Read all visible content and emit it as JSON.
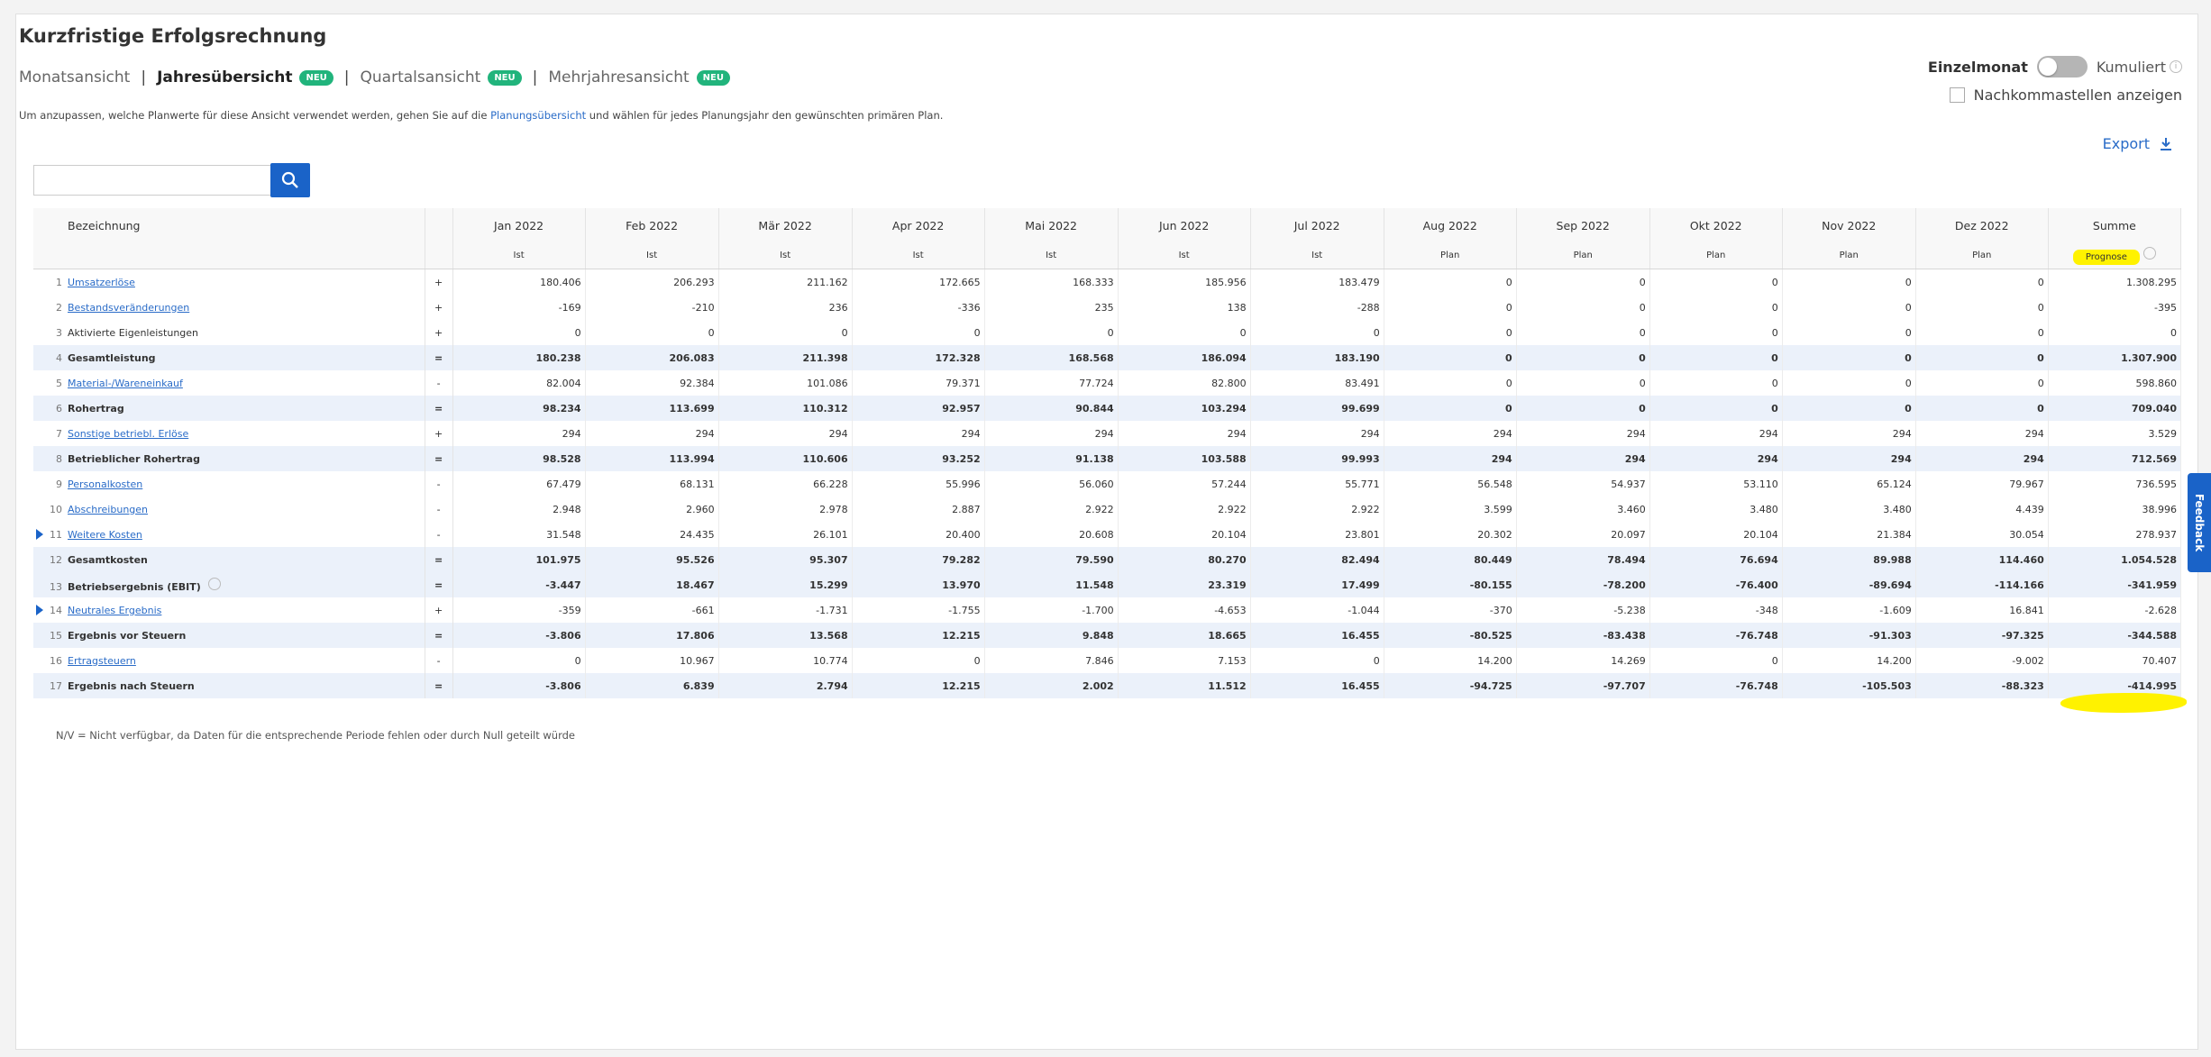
{
  "page": {
    "title": "Kurzfristige Erfolgsrechnung",
    "tabs": [
      {
        "label": "Monatsansicht",
        "badge": ""
      },
      {
        "label": "Jahresübersicht",
        "badge": "NEU"
      },
      {
        "label": "Quartalsansicht",
        "badge": "NEU"
      },
      {
        "label": "Mehrjahresansicht",
        "badge": "NEU"
      }
    ],
    "tab_separator": "|",
    "hint_before": "Um anzupassen, welche Planwerte für diese Ansicht verwendet werden, gehen Sie auf die ",
    "hint_link": "Planungsübersicht",
    "hint_after": " und wählen für jedes Planungsjahr den gewünschten primären Plan.",
    "toggle_left": "Einzelmonat",
    "toggle_right": "Kumuliert",
    "toggle_info": "i",
    "decimals_label": "Nachkommastellen anzeigen",
    "export_label": "Export",
    "search_value": "",
    "footnote": "N/V = Nicht verfügbar, da Daten für die entsprechende Periode fehlen oder durch Null geteilt würde",
    "feedback_label": "Feedback"
  },
  "table": {
    "name_header": "Bezeichnung",
    "columns": [
      "Jan 2022",
      "Feb 2022",
      "Mär 2022",
      "Apr 2022",
      "Mai 2022",
      "Jun 2022",
      "Jul 2022",
      "Aug 2022",
      "Sep 2022",
      "Okt 2022",
      "Nov 2022",
      "Dez 2022",
      "Summe"
    ],
    "subheaders": [
      "Ist",
      "Ist",
      "Ist",
      "Ist",
      "Ist",
      "Ist",
      "Ist",
      "Plan",
      "Plan",
      "Plan",
      "Plan",
      "Plan",
      "Prognose"
    ],
    "rows": [
      {
        "num": "1",
        "name": "Umsatzerlöse",
        "link": true,
        "total": false,
        "expand": false,
        "op": "+",
        "values": [
          "180.406",
          "206.293",
          "211.162",
          "172.665",
          "168.333",
          "185.956",
          "183.479",
          "0",
          "0",
          "0",
          "0",
          "0",
          "1.308.295"
        ]
      },
      {
        "num": "2",
        "name": "Bestandsveränderungen",
        "link": true,
        "total": false,
        "expand": false,
        "op": "+",
        "values": [
          "-169",
          "-210",
          "236",
          "-336",
          "235",
          "138",
          "-288",
          "0",
          "0",
          "0",
          "0",
          "0",
          "-395"
        ]
      },
      {
        "num": "3",
        "name": "Aktivierte Eigenleistungen",
        "link": false,
        "total": false,
        "expand": false,
        "op": "+",
        "values": [
          "0",
          "0",
          "0",
          "0",
          "0",
          "0",
          "0",
          "0",
          "0",
          "0",
          "0",
          "0",
          "0"
        ]
      },
      {
        "num": "4",
        "name": "Gesamtleistung",
        "link": false,
        "total": true,
        "expand": false,
        "op": "=",
        "values": [
          "180.238",
          "206.083",
          "211.398",
          "172.328",
          "168.568",
          "186.094",
          "183.190",
          "0",
          "0",
          "0",
          "0",
          "0",
          "1.307.900"
        ]
      },
      {
        "num": "5",
        "name": "Material-/Wareneinkauf",
        "link": true,
        "total": false,
        "expand": false,
        "op": "-",
        "values": [
          "82.004",
          "92.384",
          "101.086",
          "79.371",
          "77.724",
          "82.800",
          "83.491",
          "0",
          "0",
          "0",
          "0",
          "0",
          "598.860"
        ]
      },
      {
        "num": "6",
        "name": "Rohertrag",
        "link": false,
        "total": true,
        "expand": false,
        "op": "=",
        "values": [
          "98.234",
          "113.699",
          "110.312",
          "92.957",
          "90.844",
          "103.294",
          "99.699",
          "0",
          "0",
          "0",
          "0",
          "0",
          "709.040"
        ]
      },
      {
        "num": "7",
        "name": "Sonstige betriebl. Erlöse",
        "link": true,
        "total": false,
        "expand": false,
        "op": "+",
        "values": [
          "294",
          "294",
          "294",
          "294",
          "294",
          "294",
          "294",
          "294",
          "294",
          "294",
          "294",
          "294",
          "3.529"
        ]
      },
      {
        "num": "8",
        "name": "Betrieblicher Rohertrag",
        "link": false,
        "total": true,
        "expand": false,
        "op": "=",
        "values": [
          "98.528",
          "113.994",
          "110.606",
          "93.252",
          "91.138",
          "103.588",
          "99.993",
          "294",
          "294",
          "294",
          "294",
          "294",
          "712.569"
        ]
      },
      {
        "num": "9",
        "name": "Personalkosten",
        "link": true,
        "total": false,
        "expand": false,
        "op": "-",
        "values": [
          "67.479",
          "68.131",
          "66.228",
          "55.996",
          "56.060",
          "57.244",
          "55.771",
          "56.548",
          "54.937",
          "53.110",
          "65.124",
          "79.967",
          "736.595"
        ]
      },
      {
        "num": "10",
        "name": "Abschreibungen",
        "link": true,
        "total": false,
        "expand": false,
        "op": "-",
        "values": [
          "2.948",
          "2.960",
          "2.978",
          "2.887",
          "2.922",
          "2.922",
          "2.922",
          "3.599",
          "3.460",
          "3.480",
          "3.480",
          "4.439",
          "38.996"
        ]
      },
      {
        "num": "11",
        "name": "Weitere Kosten",
        "link": true,
        "total": false,
        "expand": true,
        "op": "-",
        "values": [
          "31.548",
          "24.435",
          "26.101",
          "20.400",
          "20.608",
          "20.104",
          "23.801",
          "20.302",
          "20.097",
          "20.104",
          "21.384",
          "30.054",
          "278.937"
        ]
      },
      {
        "num": "12",
        "name": "Gesamtkosten",
        "link": false,
        "total": true,
        "expand": false,
        "op": "=",
        "values": [
          "101.975",
          "95.526",
          "95.307",
          "79.282",
          "79.590",
          "80.270",
          "82.494",
          "80.449",
          "78.494",
          "76.694",
          "89.988",
          "114.460",
          "1.054.528"
        ]
      },
      {
        "num": "13",
        "name": "Betriebsergebnis (EBIT)",
        "link": false,
        "total": true,
        "expand": false,
        "info": true,
        "op": "=",
        "values": [
          "-3.447",
          "18.467",
          "15.299",
          "13.970",
          "11.548",
          "23.319",
          "17.499",
          "-80.155",
          "-78.200",
          "-76.400",
          "-89.694",
          "-114.166",
          "-341.959"
        ]
      },
      {
        "num": "14",
        "name": "Neutrales Ergebnis",
        "link": true,
        "total": false,
        "expand": true,
        "op": "+",
        "values": [
          "-359",
          "-661",
          "-1.731",
          "-1.755",
          "-1.700",
          "-4.653",
          "-1.044",
          "-370",
          "-5.238",
          "-348",
          "-1.609",
          "16.841",
          "-2.628"
        ]
      },
      {
        "num": "15",
        "name": "Ergebnis vor Steuern",
        "link": false,
        "total": true,
        "expand": false,
        "op": "=",
        "values": [
          "-3.806",
          "17.806",
          "13.568",
          "12.215",
          "9.848",
          "18.665",
          "16.455",
          "-80.525",
          "-83.438",
          "-76.748",
          "-91.303",
          "-97.325",
          "-344.588"
        ]
      },
      {
        "num": "16",
        "name": "Ertragsteuern",
        "link": true,
        "total": false,
        "expand": false,
        "op": "-",
        "values": [
          "0",
          "10.967",
          "10.774",
          "0",
          "7.846",
          "7.153",
          "0",
          "14.200",
          "14.269",
          "0",
          "14.200",
          "-9.002",
          "70.407"
        ]
      },
      {
        "num": "17",
        "name": "Ergebnis nach Steuern",
        "link": false,
        "total": true,
        "expand": false,
        "op": "=",
        "values": [
          "-3.806",
          "6.839",
          "2.794",
          "12.215",
          "2.002",
          "11.512",
          "16.455",
          "-94.725",
          "-97.707",
          "-76.748",
          "-105.503",
          "-88.323",
          "-414.995"
        ]
      }
    ]
  }
}
